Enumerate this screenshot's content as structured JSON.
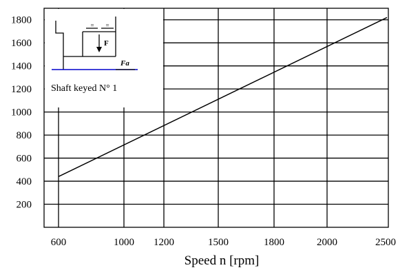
{
  "chart_data": {
    "type": "line",
    "title": "",
    "xlabel": "Speed  n  [rpm]",
    "ylabel": "",
    "x_ticks": [
      600,
      1000,
      1200,
      1500,
      1800,
      2000,
      2500
    ],
    "y_ticks": [
      200,
      400,
      600,
      800,
      1000,
      1200,
      1400,
      1600,
      1800
    ],
    "ylim": [
      0,
      1900
    ],
    "grid": true,
    "series": [
      {
        "values": [
          {
            "x": 600,
            "y": 440
          },
          {
            "x": 2500,
            "y": 1820
          }
        ]
      }
    ]
  },
  "inset": {
    "caption": "Shaft  keyed  N° 1",
    "force_label": "F",
    "axial_label": "Fa",
    "equal_mark_left": "=",
    "equal_mark_right": "=",
    "colors": {
      "shaft_line": "#0000cc",
      "ink": "#000000"
    }
  }
}
